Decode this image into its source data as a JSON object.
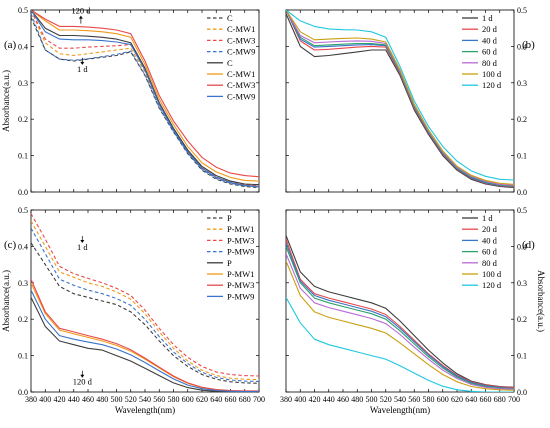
{
  "chart_data": [
    {
      "type": "line",
      "panel_label": "(a)",
      "xlabel": "",
      "ylabel": "Absorbance(a.u.)",
      "ylabel_side": "left",
      "xlim": [
        380,
        700
      ],
      "ylim": [
        0,
        0.5
      ],
      "x_ticks": [
        380,
        400,
        420,
        440,
        460,
        480,
        500,
        520,
        540,
        560,
        580,
        600,
        620,
        640,
        660,
        680,
        700
      ],
      "y_ticks": [
        0.0,
        0.1,
        0.2,
        0.3,
        0.4,
        0.5
      ],
      "y_tick_labels": [
        "0.0",
        "0.1",
        "0.2",
        "0.3",
        "0.4",
        "0.5"
      ],
      "show_x_tick_labels": false,
      "legend_position": "top-right",
      "annotations": [
        {
          "text": "120 d",
          "x": 450,
          "y": 0.49
        },
        {
          "text": "1 d",
          "x": 452,
          "y": 0.33
        }
      ],
      "x": [
        380,
        400,
        420,
        440,
        460,
        480,
        500,
        520,
        540,
        560,
        580,
        600,
        620,
        640,
        660,
        680,
        700
      ],
      "series": [
        {
          "name": "C",
          "color": "#3d3d3d",
          "dash": true,
          "values": [
            0.48,
            0.39,
            0.365,
            0.36,
            0.365,
            0.37,
            0.375,
            0.385,
            0.32,
            0.23,
            0.165,
            0.105,
            0.06,
            0.035,
            0.022,
            0.015,
            0.012
          ]
        },
        {
          "name": "C-MW1",
          "color": "#f09a1a",
          "dash": true,
          "values": [
            0.5,
            0.41,
            0.38,
            0.375,
            0.38,
            0.385,
            0.39,
            0.395,
            0.33,
            0.235,
            0.17,
            0.11,
            0.065,
            0.04,
            0.026,
            0.019,
            0.016
          ]
        },
        {
          "name": "C-MW3",
          "color": "#e8484a",
          "dash": true,
          "values": [
            0.5,
            0.42,
            0.395,
            0.395,
            0.398,
            0.4,
            0.402,
            0.405,
            0.335,
            0.24,
            0.172,
            0.112,
            0.066,
            0.041,
            0.027,
            0.02,
            0.017
          ]
        },
        {
          "name": "C-MW9",
          "color": "#3a73c9",
          "dash": true,
          "values": [
            0.49,
            0.39,
            0.365,
            0.362,
            0.366,
            0.372,
            0.378,
            0.387,
            0.322,
            0.232,
            0.167,
            0.107,
            0.062,
            0.037,
            0.024,
            0.017,
            0.014
          ]
        },
        {
          "name": "C",
          "color": "#3d3d3d",
          "dash": false,
          "values": [
            0.5,
            0.45,
            0.43,
            0.43,
            0.428,
            0.425,
            0.42,
            0.41,
            0.34,
            0.245,
            0.175,
            0.115,
            0.07,
            0.045,
            0.03,
            0.022,
            0.02
          ]
        },
        {
          "name": "C-MW1",
          "color": "#f09a1a",
          "dash": false,
          "values": [
            0.5,
            0.47,
            0.445,
            0.445,
            0.443,
            0.44,
            0.435,
            0.425,
            0.35,
            0.255,
            0.185,
            0.125,
            0.08,
            0.055,
            0.04,
            0.032,
            0.03
          ]
        },
        {
          "name": "C-MW3",
          "color": "#e8484a",
          "dash": false,
          "values": [
            0.5,
            0.475,
            0.455,
            0.455,
            0.453,
            0.45,
            0.445,
            0.435,
            0.36,
            0.265,
            0.195,
            0.14,
            0.095,
            0.068,
            0.052,
            0.045,
            0.042
          ]
        },
        {
          "name": "C-MW9",
          "color": "#3a73c9",
          "dash": false,
          "values": [
            0.5,
            0.44,
            0.42,
            0.418,
            0.418,
            0.416,
            0.412,
            0.405,
            0.335,
            0.24,
            0.17,
            0.11,
            0.065,
            0.04,
            0.026,
            0.018,
            0.015
          ]
        }
      ]
    },
    {
      "type": "line",
      "panel_label": "(b)",
      "xlabel": "",
      "ylabel": "",
      "ylabel_side": "right",
      "xlim": [
        380,
        700
      ],
      "ylim": [
        0,
        0.5
      ],
      "x_ticks": [
        380,
        400,
        420,
        440,
        460,
        480,
        500,
        520,
        540,
        560,
        580,
        600,
        620,
        640,
        660,
        680,
        700
      ],
      "y_ticks": [
        0.0,
        0.1,
        0.2,
        0.3,
        0.4,
        0.5
      ],
      "y_tick_labels": [
        "0.0",
        "0.1",
        "0.2",
        "0.3",
        "0.4",
        "0.5"
      ],
      "show_x_tick_labels": false,
      "legend_position": "top-right",
      "annotations": [],
      "x": [
        380,
        400,
        420,
        440,
        460,
        480,
        500,
        520,
        540,
        560,
        580,
        600,
        620,
        640,
        660,
        680,
        700
      ],
      "series": [
        {
          "name": "1 d",
          "color": "#3d3d3d",
          "dash": false,
          "values": [
            0.49,
            0.4,
            0.372,
            0.375,
            0.38,
            0.385,
            0.39,
            0.39,
            0.32,
            0.225,
            0.158,
            0.1,
            0.06,
            0.035,
            0.022,
            0.015,
            0.012
          ]
        },
        {
          "name": "20 d",
          "color": "#e8484a",
          "dash": false,
          "values": [
            0.5,
            0.415,
            0.39,
            0.392,
            0.395,
            0.398,
            0.4,
            0.398,
            0.325,
            0.23,
            0.162,
            0.104,
            0.063,
            0.038,
            0.024,
            0.017,
            0.014
          ]
        },
        {
          "name": "40 d",
          "color": "#3a73c9",
          "dash": false,
          "values": [
            0.5,
            0.42,
            0.398,
            0.4,
            0.402,
            0.404,
            0.405,
            0.402,
            0.328,
            0.233,
            0.164,
            0.106,
            0.064,
            0.039,
            0.025,
            0.018,
            0.015
          ]
        },
        {
          "name": "60 d",
          "color": "#2aa06a",
          "dash": false,
          "values": [
            0.5,
            0.425,
            0.402,
            0.404,
            0.406,
            0.408,
            0.408,
            0.404,
            0.33,
            0.235,
            0.166,
            0.108,
            0.066,
            0.041,
            0.027,
            0.019,
            0.016
          ]
        },
        {
          "name": "80 d",
          "color": "#b86ad6",
          "dash": false,
          "values": [
            0.5,
            0.43,
            0.41,
            0.412,
            0.414,
            0.415,
            0.414,
            0.408,
            0.333,
            0.238,
            0.168,
            0.11,
            0.068,
            0.043,
            0.029,
            0.021,
            0.018
          ]
        },
        {
          "name": "100 d",
          "color": "#c9a012",
          "dash": false,
          "values": [
            0.5,
            0.44,
            0.418,
            0.42,
            0.422,
            0.423,
            0.42,
            0.412,
            0.336,
            0.241,
            0.171,
            0.113,
            0.071,
            0.046,
            0.032,
            0.024,
            0.021
          ]
        },
        {
          "name": "120 d",
          "color": "#1ec8e0",
          "dash": false,
          "values": [
            0.5,
            0.47,
            0.455,
            0.448,
            0.446,
            0.445,
            0.44,
            0.425,
            0.345,
            0.25,
            0.18,
            0.125,
            0.085,
            0.058,
            0.043,
            0.035,
            0.033
          ]
        }
      ]
    },
    {
      "type": "line",
      "panel_label": "(c)",
      "xlabel": "Wavelength(nm)",
      "ylabel": "Absorbance(a.u.)",
      "ylabel_side": "left",
      "xlim": [
        380,
        700
      ],
      "ylim": [
        0,
        0.5
      ],
      "x_ticks": [
        380,
        400,
        420,
        440,
        460,
        480,
        500,
        520,
        540,
        560,
        580,
        600,
        620,
        640,
        660,
        680,
        700
      ],
      "y_ticks": [
        0.0,
        0.1,
        0.2,
        0.3,
        0.4,
        0.5
      ],
      "y_tick_labels": [
        "0.0",
        "0.1",
        "0.2",
        "0.3",
        "0.4",
        "0.5"
      ],
      "show_x_tick_labels": true,
      "legend_position": "top-right",
      "annotations": [
        {
          "text": "1 d",
          "x": 452,
          "y": 0.39
        },
        {
          "text": "120 d",
          "x": 452,
          "y": 0.02
        }
      ],
      "x": [
        380,
        400,
        420,
        440,
        460,
        480,
        500,
        520,
        540,
        560,
        580,
        600,
        620,
        640,
        660,
        680,
        700
      ],
      "series": [
        {
          "name": "P",
          "color": "#3d3d3d",
          "dash": true,
          "values": [
            0.41,
            0.35,
            0.29,
            0.27,
            0.26,
            0.25,
            0.24,
            0.22,
            0.185,
            0.14,
            0.1,
            0.07,
            0.048,
            0.035,
            0.028,
            0.025,
            0.024
          ]
        },
        {
          "name": "P-MW1",
          "color": "#f09a1a",
          "dash": true,
          "values": [
            0.47,
            0.4,
            0.33,
            0.315,
            0.3,
            0.29,
            0.275,
            0.255,
            0.215,
            0.165,
            0.12,
            0.085,
            0.06,
            0.045,
            0.038,
            0.035,
            0.034
          ]
        },
        {
          "name": "P-MW3",
          "color": "#e8484a",
          "dash": true,
          "values": [
            0.49,
            0.42,
            0.345,
            0.325,
            0.312,
            0.3,
            0.285,
            0.265,
            0.225,
            0.175,
            0.13,
            0.095,
            0.07,
            0.055,
            0.048,
            0.045,
            0.044
          ]
        },
        {
          "name": "P-MW9",
          "color": "#3a73c9",
          "dash": true,
          "values": [
            0.45,
            0.38,
            0.31,
            0.293,
            0.28,
            0.27,
            0.257,
            0.238,
            0.2,
            0.152,
            0.11,
            0.078,
            0.054,
            0.04,
            0.033,
            0.03,
            0.029
          ]
        },
        {
          "name": "P",
          "color": "#3d3d3d",
          "dash": false,
          "values": [
            0.26,
            0.18,
            0.14,
            0.13,
            0.12,
            0.115,
            0.1,
            0.085,
            0.065,
            0.045,
            0.025,
            0.012,
            0.005,
            0.002,
            0.0,
            0.0,
            0.0
          ]
        },
        {
          "name": "P-MW1",
          "color": "#f09a1a",
          "dash": false,
          "values": [
            0.3,
            0.215,
            0.17,
            0.16,
            0.15,
            0.14,
            0.128,
            0.112,
            0.09,
            0.066,
            0.042,
            0.024,
            0.012,
            0.006,
            0.003,
            0.002,
            0.002
          ]
        },
        {
          "name": "P-MW3",
          "color": "#e8484a",
          "dash": false,
          "values": [
            0.31,
            0.22,
            0.175,
            0.165,
            0.155,
            0.145,
            0.133,
            0.116,
            0.093,
            0.068,
            0.044,
            0.025,
            0.013,
            0.007,
            0.004,
            0.003,
            0.003
          ]
        },
        {
          "name": "P-MW9",
          "color": "#3a73c9",
          "dash": false,
          "values": [
            0.28,
            0.2,
            0.155,
            0.145,
            0.137,
            0.13,
            0.118,
            0.102,
            0.081,
            0.058,
            0.036,
            0.019,
            0.009,
            0.004,
            0.002,
            0.001,
            0.001
          ]
        }
      ]
    },
    {
      "type": "line",
      "panel_label": "(d)",
      "xlabel": "Wavelength(nm)",
      "ylabel": "Absorbance(a.u.)",
      "ylabel_side": "right",
      "xlim": [
        380,
        700
      ],
      "ylim": [
        0,
        0.5
      ],
      "x_ticks": [
        380,
        400,
        420,
        440,
        460,
        480,
        500,
        520,
        540,
        560,
        580,
        600,
        620,
        640,
        660,
        680,
        700
      ],
      "y_ticks": [
        0.0,
        0.1,
        0.2,
        0.3,
        0.4,
        0.5
      ],
      "y_tick_labels": [
        "0.0",
        "0.1",
        "0.2",
        "0.3",
        "0.4",
        "0.5"
      ],
      "show_x_tick_labels": true,
      "legend_position": "top-right",
      "annotations": [],
      "x": [
        380,
        400,
        420,
        440,
        460,
        480,
        500,
        520,
        540,
        560,
        580,
        600,
        620,
        640,
        660,
        680,
        700
      ],
      "series": [
        {
          "name": "1 d",
          "color": "#3d3d3d",
          "dash": false,
          "values": [
            0.43,
            0.33,
            0.29,
            0.275,
            0.265,
            0.255,
            0.245,
            0.23,
            0.195,
            0.155,
            0.115,
            0.08,
            0.05,
            0.03,
            0.02,
            0.015,
            0.013
          ]
        },
        {
          "name": "20 d",
          "color": "#e8484a",
          "dash": false,
          "values": [
            0.42,
            0.31,
            0.27,
            0.258,
            0.248,
            0.238,
            0.228,
            0.213,
            0.18,
            0.142,
            0.105,
            0.073,
            0.046,
            0.028,
            0.019,
            0.014,
            0.012
          ]
        },
        {
          "name": "40 d",
          "color": "#3a73c9",
          "dash": false,
          "values": [
            0.41,
            0.305,
            0.265,
            0.252,
            0.242,
            0.232,
            0.222,
            0.207,
            0.175,
            0.138,
            0.102,
            0.07,
            0.044,
            0.026,
            0.017,
            0.012,
            0.01
          ]
        },
        {
          "name": "60 d",
          "color": "#2aa06a",
          "dash": false,
          "values": [
            0.4,
            0.3,
            0.258,
            0.245,
            0.235,
            0.225,
            0.215,
            0.2,
            0.168,
            0.132,
            0.097,
            0.066,
            0.041,
            0.024,
            0.015,
            0.011,
            0.009
          ]
        },
        {
          "name": "80 d",
          "color": "#b86ad6",
          "dash": false,
          "values": [
            0.38,
            0.285,
            0.245,
            0.232,
            0.222,
            0.212,
            0.202,
            0.188,
            0.158,
            0.123,
            0.09,
            0.06,
            0.037,
            0.021,
            0.013,
            0.009,
            0.008
          ]
        },
        {
          "name": "100 d",
          "color": "#c9a012",
          "dash": false,
          "values": [
            0.36,
            0.265,
            0.22,
            0.205,
            0.195,
            0.185,
            0.175,
            0.162,
            0.135,
            0.105,
            0.075,
            0.048,
            0.028,
            0.015,
            0.009,
            0.006,
            0.005
          ]
        },
        {
          "name": "120 d",
          "color": "#1ec8e0",
          "dash": false,
          "values": [
            0.26,
            0.19,
            0.145,
            0.13,
            0.12,
            0.11,
            0.1,
            0.09,
            0.072,
            0.052,
            0.032,
            0.016,
            0.006,
            0.002,
            0.0,
            0.0,
            0.0
          ]
        }
      ]
    }
  ]
}
